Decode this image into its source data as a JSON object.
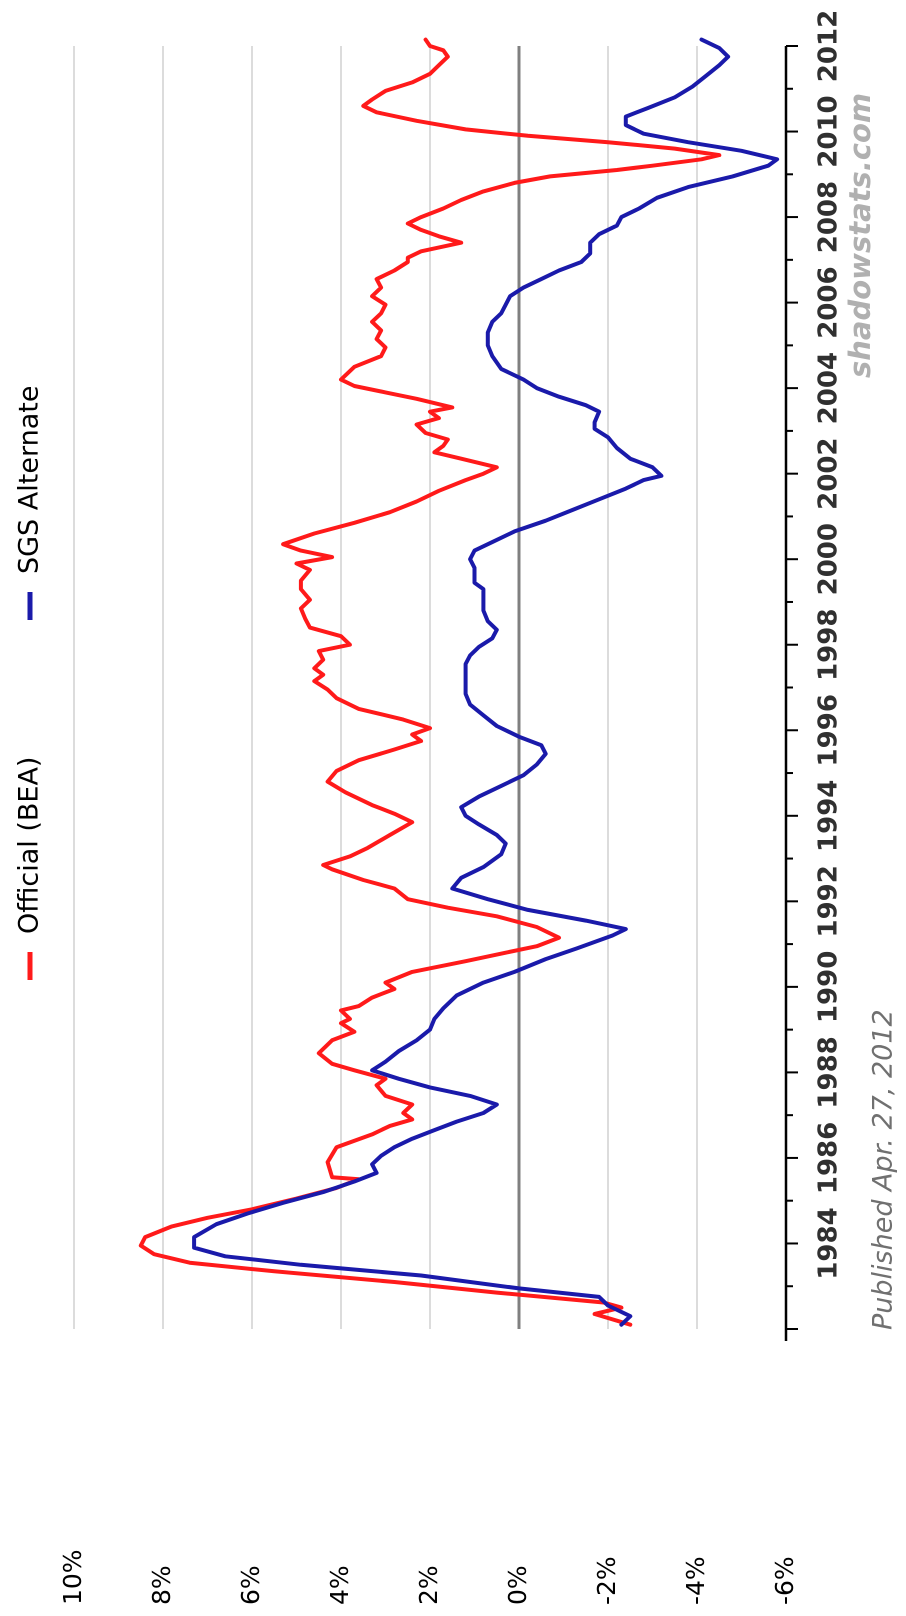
{
  "chart_data": {
    "type": "line",
    "title": "",
    "xlabel": "",
    "ylabel": "",
    "orientation": "rotated-90-clockwise",
    "xlim": [
      1982.0,
      2012.0
    ],
    "ylim": [
      -6,
      10
    ],
    "x_ticks": [
      "1984",
      "1986",
      "1988",
      "1990",
      "1992",
      "1994",
      "1996",
      "1998",
      "2000",
      "2002",
      "2004",
      "2006",
      "2008",
      "2010",
      "2012"
    ],
    "y_ticks": [
      "10%",
      "8%",
      "6%",
      "4%",
      "2%",
      "0%",
      "-2%",
      "-4%",
      "-6%"
    ],
    "legend_position": "top",
    "grid": true,
    "colors": {
      "official": "#ff1a1a",
      "sgs": "#1a1aaa",
      "zero_line": "#808080",
      "grid": "#d0d0d0",
      "axis": "#000000",
      "watermark": "#b0b0b0"
    },
    "series": [
      {
        "name": "Official (BEA)",
        "points": [
          [
            1982.1,
            -2.5
          ],
          [
            1982.35,
            -1.7
          ],
          [
            1982.5,
            -2.3
          ],
          [
            1982.62,
            -1.9
          ],
          [
            1982.85,
            0.5
          ],
          [
            1983.1,
            2.8
          ],
          [
            1983.35,
            5.5
          ],
          [
            1983.55,
            7.4
          ],
          [
            1983.75,
            8.2
          ],
          [
            1983.95,
            8.5
          ],
          [
            1984.15,
            8.4
          ],
          [
            1984.4,
            7.8
          ],
          [
            1984.6,
            7.0
          ],
          [
            1984.8,
            6.0
          ],
          [
            1985.05,
            5.0
          ],
          [
            1985.3,
            4.1
          ],
          [
            1985.5,
            3.6
          ],
          [
            1985.55,
            4.2
          ],
          [
            1985.9,
            4.3
          ],
          [
            1986.25,
            4.1
          ],
          [
            1986.55,
            3.3
          ],
          [
            1986.75,
            2.9
          ],
          [
            1986.9,
            2.4
          ],
          [
            1987.05,
            2.6
          ],
          [
            1987.25,
            2.4
          ],
          [
            1987.45,
            3.0
          ],
          [
            1987.7,
            3.2
          ],
          [
            1987.85,
            3.0
          ],
          [
            1988.05,
            3.7
          ],
          [
            1988.2,
            4.2
          ],
          [
            1988.45,
            4.5
          ],
          [
            1988.75,
            4.2
          ],
          [
            1988.95,
            3.7
          ],
          [
            1989.15,
            4.0
          ],
          [
            1989.25,
            3.8
          ],
          [
            1989.45,
            4.0
          ],
          [
            1989.55,
            3.6
          ],
          [
            1989.75,
            3.3
          ],
          [
            1989.95,
            2.8
          ],
          [
            1990.1,
            3.0
          ],
          [
            1990.35,
            2.4
          ],
          [
            1990.6,
            1.2
          ],
          [
            1990.8,
            0.3
          ],
          [
            1990.95,
            -0.4
          ],
          [
            1991.15,
            -0.9
          ],
          [
            1991.4,
            -0.4
          ],
          [
            1991.65,
            0.5
          ],
          [
            1991.85,
            1.6
          ],
          [
            1992.05,
            2.5
          ],
          [
            1992.3,
            2.8
          ],
          [
            1992.5,
            3.5
          ],
          [
            1992.75,
            4.2
          ],
          [
            1992.85,
            4.4
          ],
          [
            1993.05,
            3.8
          ],
          [
            1993.25,
            3.4
          ],
          [
            1993.55,
            2.9
          ],
          [
            1993.85,
            2.4
          ],
          [
            1994.05,
            2.8
          ],
          [
            1994.25,
            3.3
          ],
          [
            1994.55,
            3.9
          ],
          [
            1994.8,
            4.3
          ],
          [
            1995.05,
            4.1
          ],
          [
            1995.3,
            3.6
          ],
          [
            1995.55,
            2.8
          ],
          [
            1995.75,
            2.2
          ],
          [
            1995.9,
            2.4
          ],
          [
            1996.05,
            2.0
          ],
          [
            1996.25,
            2.6
          ],
          [
            1996.5,
            3.6
          ],
          [
            1996.75,
            4.1
          ],
          [
            1996.95,
            4.3
          ],
          [
            1997.15,
            4.6
          ],
          [
            1997.3,
            4.4
          ],
          [
            1997.45,
            4.6
          ],
          [
            1997.65,
            4.4
          ],
          [
            1997.85,
            4.5
          ],
          [
            1998.0,
            3.8
          ],
          [
            1998.2,
            4.0
          ],
          [
            1998.4,
            4.7
          ],
          [
            1998.6,
            4.8
          ],
          [
            1998.85,
            4.9
          ],
          [
            1999.05,
            4.7
          ],
          [
            1999.3,
            4.9
          ],
          [
            1999.5,
            4.9
          ],
          [
            1999.75,
            4.7
          ],
          [
            1999.9,
            5.0
          ],
          [
            2000.05,
            4.2
          ],
          [
            2000.2,
            4.9
          ],
          [
            2000.35,
            5.3
          ],
          [
            2000.6,
            4.6
          ],
          [
            2000.85,
            3.7
          ],
          [
            2001.1,
            2.9
          ],
          [
            2001.35,
            2.3
          ],
          [
            2001.6,
            1.8
          ],
          [
            2001.85,
            1.2
          ],
          [
            2002.0,
            0.8
          ],
          [
            2002.15,
            0.5
          ],
          [
            2002.35,
            1.3
          ],
          [
            2002.5,
            1.9
          ],
          [
            2002.65,
            1.7
          ],
          [
            2002.8,
            1.6
          ],
          [
            2002.95,
            2.1
          ],
          [
            2003.15,
            2.3
          ],
          [
            2003.3,
            1.8
          ],
          [
            2003.45,
            2.0
          ],
          [
            2003.55,
            1.5
          ],
          [
            2003.75,
            2.3
          ],
          [
            2003.9,
            3.0
          ],
          [
            2004.05,
            3.7
          ],
          [
            2004.2,
            4.0
          ],
          [
            2004.5,
            3.7
          ],
          [
            2004.75,
            3.1
          ],
          [
            2004.95,
            3.0
          ],
          [
            2005.15,
            3.2
          ],
          [
            2005.35,
            3.1
          ],
          [
            2005.55,
            3.3
          ],
          [
            2005.75,
            3.1
          ],
          [
            2005.95,
            3.0
          ],
          [
            2006.15,
            3.3
          ],
          [
            2006.35,
            3.1
          ],
          [
            2006.55,
            3.2
          ],
          [
            2006.75,
            2.8
          ],
          [
            2006.95,
            2.5
          ],
          [
            2007.05,
            2.5
          ],
          [
            2007.2,
            2.2
          ],
          [
            2007.4,
            1.3
          ],
          [
            2007.55,
            1.8
          ],
          [
            2007.7,
            2.2
          ],
          [
            2007.85,
            2.5
          ],
          [
            2008.0,
            2.2
          ],
          [
            2008.2,
            1.7
          ],
          [
            2008.4,
            1.3
          ],
          [
            2008.6,
            0.8
          ],
          [
            2008.8,
            0.1
          ],
          [
            2008.95,
            -0.7
          ],
          [
            2009.1,
            -2.2
          ],
          [
            2009.2,
            -3.0
          ],
          [
            2009.35,
            -4.1
          ],
          [
            2009.45,
            -4.5
          ],
          [
            2009.6,
            -3.5
          ],
          [
            2009.75,
            -2.0
          ],
          [
            2009.9,
            -0.2
          ],
          [
            2010.05,
            1.2
          ],
          [
            2010.25,
            2.3
          ],
          [
            2010.45,
            3.2
          ],
          [
            2010.6,
            3.5
          ],
          [
            2010.75,
            3.3
          ],
          [
            2010.95,
            3.0
          ],
          [
            2011.15,
            2.4
          ],
          [
            2011.35,
            2.0
          ],
          [
            2011.55,
            1.8
          ],
          [
            2011.75,
            1.6
          ],
          [
            2011.9,
            1.7
          ],
          [
            2012.0,
            2.0
          ],
          [
            2012.15,
            2.1
          ]
        ]
      },
      {
        "name": "SGS Alternate",
        "points": [
          [
            1982.1,
            -2.3
          ],
          [
            1982.3,
            -2.5
          ],
          [
            1982.55,
            -2.0
          ],
          [
            1982.75,
            -1.8
          ],
          [
            1982.95,
            0.0
          ],
          [
            1983.25,
            2.2
          ],
          [
            1983.5,
            4.9
          ],
          [
            1983.7,
            6.6
          ],
          [
            1983.9,
            7.3
          ],
          [
            1984.15,
            7.3
          ],
          [
            1984.45,
            6.8
          ],
          [
            1984.7,
            6.1
          ],
          [
            1984.95,
            5.3
          ],
          [
            1985.2,
            4.4
          ],
          [
            1985.45,
            3.7
          ],
          [
            1985.65,
            3.2
          ],
          [
            1985.85,
            3.3
          ],
          [
            1986.05,
            3.1
          ],
          [
            1986.25,
            2.8
          ],
          [
            1986.45,
            2.4
          ],
          [
            1986.65,
            1.9
          ],
          [
            1986.85,
            1.4
          ],
          [
            1987.05,
            0.8
          ],
          [
            1987.25,
            0.5
          ],
          [
            1987.45,
            1.1
          ],
          [
            1987.65,
            2.0
          ],
          [
            1987.85,
            2.7
          ],
          [
            1988.05,
            3.3
          ],
          [
            1988.25,
            3.0
          ],
          [
            1988.5,
            2.7
          ],
          [
            1988.75,
            2.3
          ],
          [
            1989.0,
            2.0
          ],
          [
            1989.25,
            1.9
          ],
          [
            1989.5,
            1.7
          ],
          [
            1989.8,
            1.4
          ],
          [
            1990.1,
            0.8
          ],
          [
            1990.35,
            0.1
          ],
          [
            1990.65,
            -0.6
          ],
          [
            1990.9,
            -1.3
          ],
          [
            1991.2,
            -2.1
          ],
          [
            1991.35,
            -2.4
          ],
          [
            1991.55,
            -1.5
          ],
          [
            1991.8,
            -0.2
          ],
          [
            1992.05,
            0.7
          ],
          [
            1992.3,
            1.5
          ],
          [
            1992.55,
            1.3
          ],
          [
            1992.8,
            0.8
          ],
          [
            1993.1,
            0.4
          ],
          [
            1993.35,
            0.3
          ],
          [
            1993.55,
            0.5
          ],
          [
            1993.8,
            0.9
          ],
          [
            1994.0,
            1.2
          ],
          [
            1994.2,
            1.3
          ],
          [
            1994.45,
            0.9
          ],
          [
            1994.7,
            0.4
          ],
          [
            1994.95,
            -0.1
          ],
          [
            1995.2,
            -0.4
          ],
          [
            1995.45,
            -0.6
          ],
          [
            1995.65,
            -0.5
          ],
          [
            1995.85,
            0.0
          ],
          [
            1996.1,
            0.5
          ],
          [
            1996.35,
            0.8
          ],
          [
            1996.6,
            1.1
          ],
          [
            1996.85,
            1.2
          ],
          [
            1997.05,
            1.2
          ],
          [
            1997.3,
            1.2
          ],
          [
            1997.55,
            1.2
          ],
          [
            1997.75,
            1.1
          ],
          [
            1997.95,
            0.9
          ],
          [
            1998.15,
            0.6
          ],
          [
            1998.35,
            0.5
          ],
          [
            1998.55,
            0.7
          ],
          [
            1998.8,
            0.8
          ],
          [
            1999.05,
            0.8
          ],
          [
            1999.3,
            0.8
          ],
          [
            1999.45,
            1.0
          ],
          [
            1999.6,
            1.0
          ],
          [
            1999.8,
            1.0
          ],
          [
            2000.0,
            1.1
          ],
          [
            2000.2,
            1.0
          ],
          [
            2000.4,
            0.6
          ],
          [
            2000.65,
            0.1
          ],
          [
            2000.9,
            -0.6
          ],
          [
            2001.15,
            -1.2
          ],
          [
            2001.4,
            -1.8
          ],
          [
            2001.65,
            -2.4
          ],
          [
            2001.85,
            -2.8
          ],
          [
            2001.95,
            -3.2
          ],
          [
            2002.15,
            -3.0
          ],
          [
            2002.35,
            -2.5
          ],
          [
            2002.6,
            -2.2
          ],
          [
            2002.85,
            -2.0
          ],
          [
            2003.05,
            -1.7
          ],
          [
            2003.2,
            -1.7
          ],
          [
            2003.45,
            -1.8
          ],
          [
            2003.6,
            -1.5
          ],
          [
            2003.8,
            -0.9
          ],
          [
            2004.0,
            -0.4
          ],
          [
            2004.2,
            -0.1
          ],
          [
            2004.45,
            0.4
          ],
          [
            2004.75,
            0.6
          ],
          [
            2005.0,
            0.7
          ],
          [
            2005.3,
            0.7
          ],
          [
            2005.55,
            0.6
          ],
          [
            2005.75,
            0.4
          ],
          [
            2005.95,
            0.3
          ],
          [
            2006.15,
            0.2
          ],
          [
            2006.35,
            -0.1
          ],
          [
            2006.55,
            -0.5
          ],
          [
            2006.75,
            -0.9
          ],
          [
            2006.95,
            -1.4
          ],
          [
            2007.15,
            -1.6
          ],
          [
            2007.4,
            -1.6
          ],
          [
            2007.6,
            -1.8
          ],
          [
            2007.8,
            -2.2
          ],
          [
            2008.0,
            -2.3
          ],
          [
            2008.2,
            -2.7
          ],
          [
            2008.45,
            -3.1
          ],
          [
            2008.7,
            -3.8
          ],
          [
            2008.95,
            -4.8
          ],
          [
            2009.2,
            -5.6
          ],
          [
            2009.35,
            -5.8
          ],
          [
            2009.55,
            -5.0
          ],
          [
            2009.75,
            -3.8
          ],
          [
            2009.95,
            -2.8
          ],
          [
            2010.15,
            -2.4
          ],
          [
            2010.35,
            -2.4
          ],
          [
            2010.55,
            -2.9
          ],
          [
            2010.8,
            -3.5
          ],
          [
            2011.05,
            -3.9
          ],
          [
            2011.3,
            -4.2
          ],
          [
            2011.55,
            -4.5
          ],
          [
            2011.75,
            -4.7
          ],
          [
            2011.95,
            -4.5
          ],
          [
            2012.15,
            -4.1
          ]
        ]
      }
    ],
    "annotations": {
      "watermark": "shadowstats.com",
      "published": "Published Apr. 27, 2012"
    }
  }
}
